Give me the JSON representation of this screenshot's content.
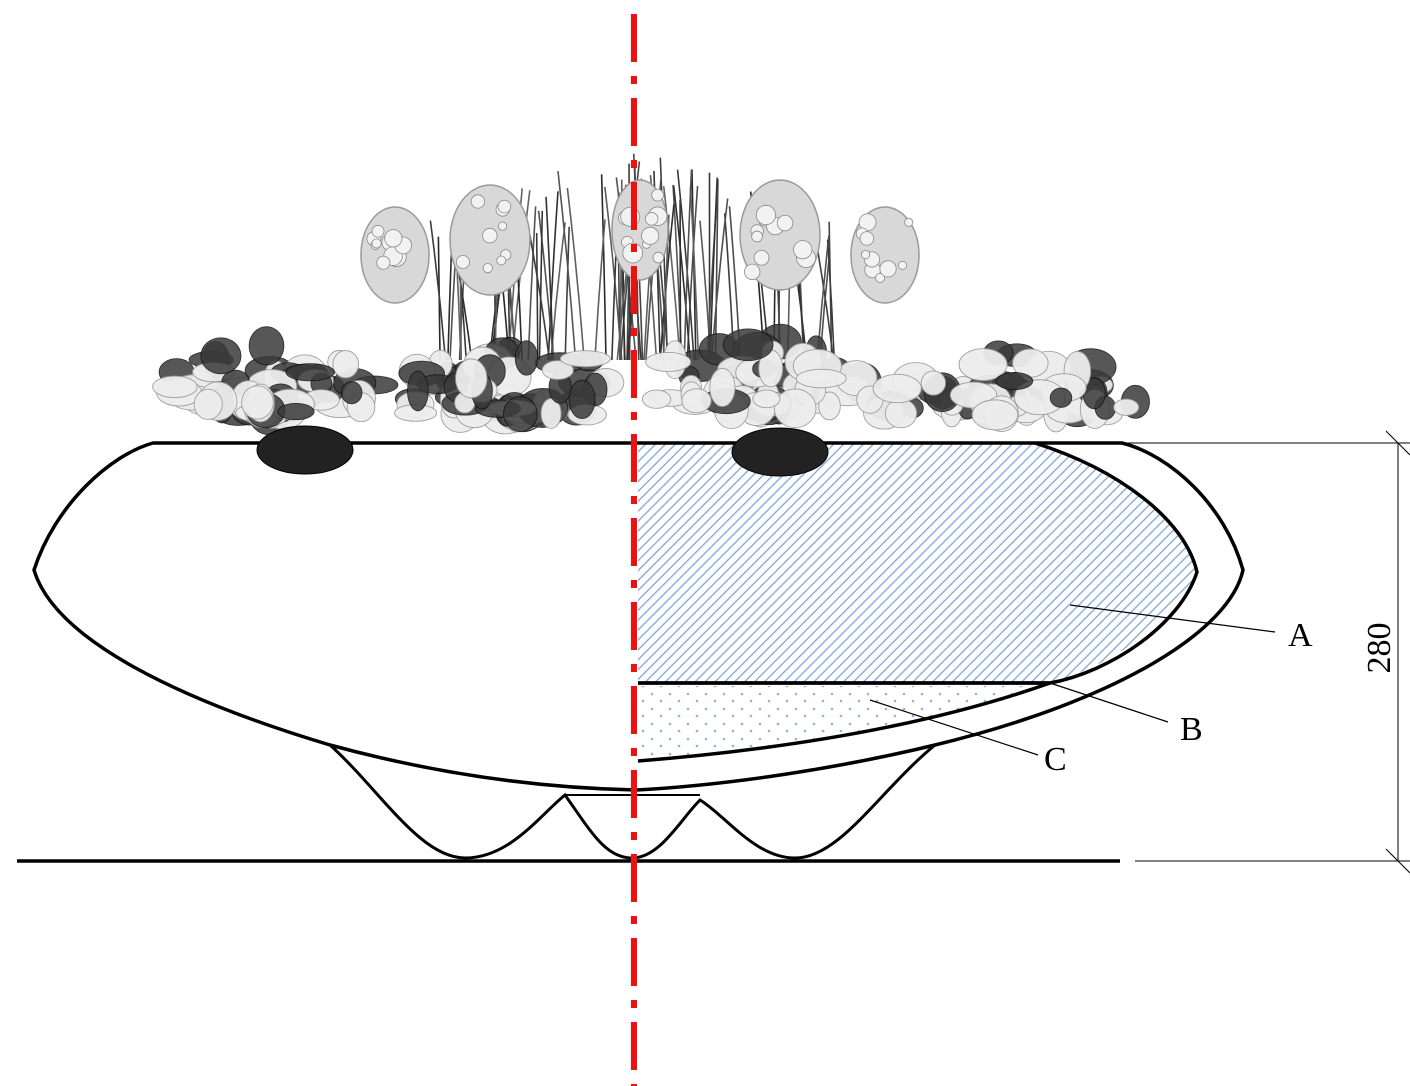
{
  "diagram": {
    "dimension": {
      "value": "280"
    },
    "labels": [
      {
        "key": "A",
        "text": "A"
      },
      {
        "key": "B",
        "text": "B"
      },
      {
        "key": "C",
        "text": "C"
      }
    ],
    "colors": {
      "centerline": "#ee1111",
      "hatch": "#7fa6d9",
      "dots": "#8fb3e0",
      "outline": "#000000",
      "foliage_dark": "#2a2a2a",
      "foliage_mid": "#8a8a8a",
      "foliage_light": "#e8e8e8"
    }
  }
}
